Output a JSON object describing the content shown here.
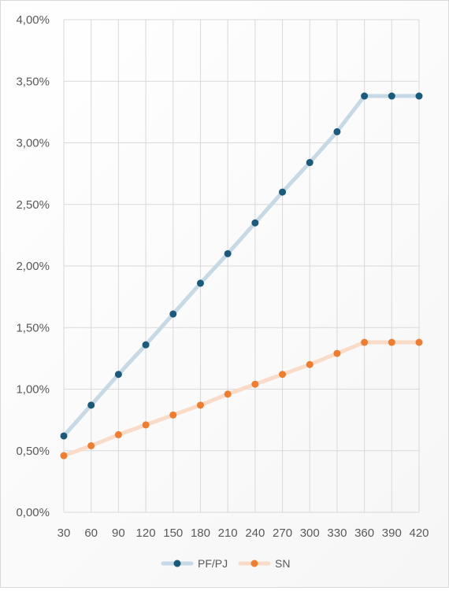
{
  "chart_data": {
    "type": "line",
    "x": [
      30,
      60,
      90,
      120,
      150,
      180,
      210,
      240,
      270,
      300,
      330,
      360,
      390,
      420
    ],
    "x_tick_labels": [
      "30",
      "60",
      "90",
      "120",
      "150",
      "180",
      "210",
      "240",
      "270",
      "300",
      "330",
      "360",
      "390",
      "420"
    ],
    "y_tick_labels": [
      "0,00%",
      "0,50%",
      "1,00%",
      "1,50%",
      "2,00%",
      "2,50%",
      "3,00%",
      "3,50%",
      "4,00%"
    ],
    "ylim": [
      0,
      4.0
    ],
    "y_unit": "%",
    "grid": true,
    "legend_position": "bottom",
    "series": [
      {
        "name": "PF/PJ",
        "line_color": "#c6d9e5",
        "marker_color": "#1b5a7a",
        "values": [
          0.62,
          0.87,
          1.12,
          1.36,
          1.61,
          1.86,
          2.1,
          2.35,
          2.6,
          2.84,
          3.09,
          3.38,
          3.38,
          3.38
        ]
      },
      {
        "name": "SN",
        "line_color": "#fadbc8",
        "marker_color": "#ed7d31",
        "values": [
          0.46,
          0.54,
          0.63,
          0.71,
          0.79,
          0.87,
          0.96,
          1.04,
          1.12,
          1.2,
          1.29,
          1.38,
          1.38,
          1.38
        ]
      }
    ]
  }
}
